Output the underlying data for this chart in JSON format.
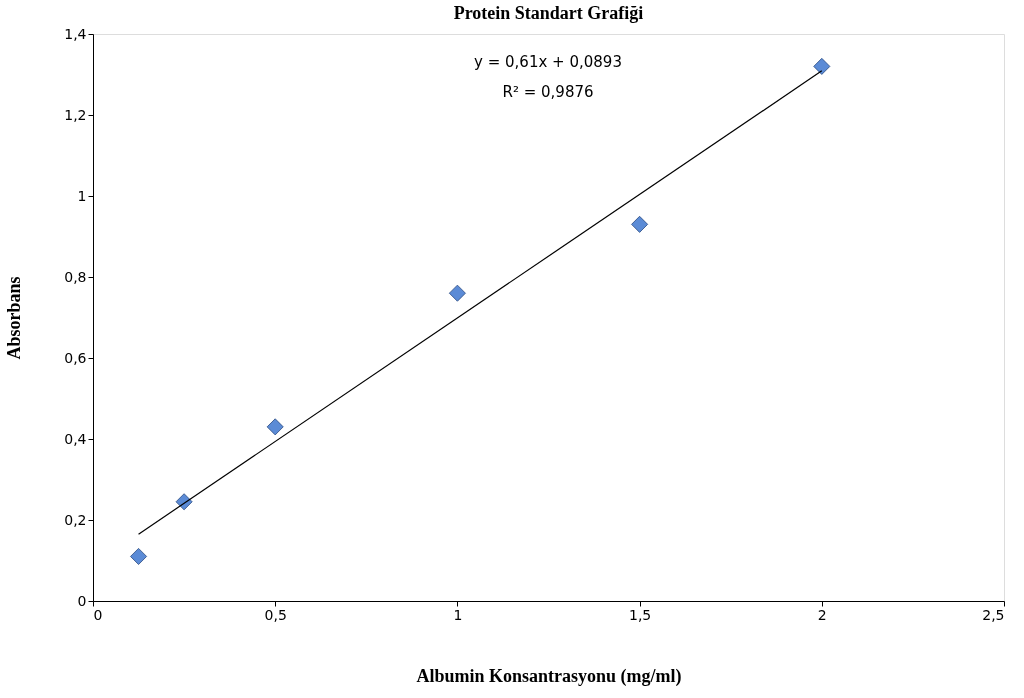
{
  "chart_data": {
    "type": "scatter",
    "title": "Protein Standart Grafiği",
    "xlabel": "Albumin Konsantrasyonu (mg/ml)",
    "ylabel": "Absorbans",
    "annotations": [
      "y = 0,61x + 0,0893",
      "R² = 0,9876"
    ],
    "series": [
      {
        "color": "#5b8bd6",
        "marker": "diamond",
        "x": [
          0.125,
          0.25,
          0.5,
          1,
          1.5,
          2
        ],
        "values": [
          0.11,
          0.245,
          0.43,
          0.76,
          0.93,
          1.32
        ]
      },
      {
        "type": "line",
        "color": "#000000",
        "line_style": "solid",
        "x": [
          0.125,
          2
        ],
        "values": [
          0.165,
          1.309
        ]
      }
    ],
    "xlim": [
      0,
      2.5
    ],
    "ylim": [
      0,
      1.4
    ],
    "xticks": [
      0,
      {
        "value": 0.5,
        "label": "0,5"
      },
      1,
      {
        "value": 1.5,
        "label": "1,5"
      },
      2,
      {
        "value": 2.5,
        "label": "2,5"
      }
    ],
    "yticks": [
      0,
      {
        "value": 0.2,
        "label": "0,2"
      },
      {
        "value": 0.4,
        "label": "0,4"
      },
      {
        "value": 0.6,
        "label": "0,6"
      },
      {
        "value": 0.8,
        "label": "0,8"
      },
      1,
      {
        "value": 1.2,
        "label": "1,2"
      },
      {
        "value": 1.4,
        "label": "1,4"
      }
    ],
    "grid": false
  }
}
